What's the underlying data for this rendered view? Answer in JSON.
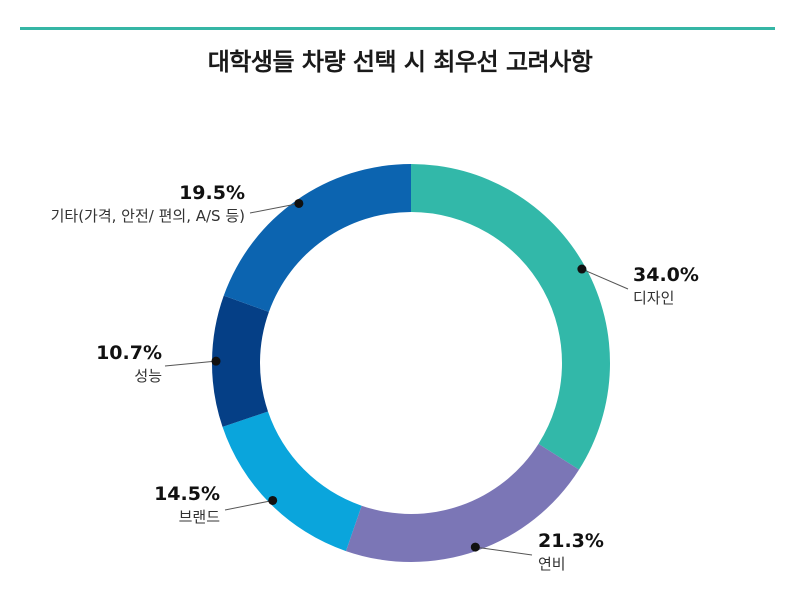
{
  "title": "대학생들 차량 선택 시 최우선 고려사항",
  "colors": {
    "rule": "#35b6a5"
  },
  "chart_data": {
    "type": "pie",
    "donut": true,
    "title": "대학생들 차량 선택 시 최우선 고려사항",
    "start": "12 o'clock, clockwise",
    "slices": [
      {
        "label": "디자인",
        "value": 34.0,
        "display": "34.0%",
        "color": "#32b8a9"
      },
      {
        "label": "연비",
        "value": 21.3,
        "display": "21.3%",
        "color": "#7b76b6"
      },
      {
        "label": "브랜드",
        "value": 14.5,
        "display": "14.5%",
        "color": "#0aa5dc"
      },
      {
        "label": "성능",
        "value": 10.7,
        "display": "10.7%",
        "color": "#053f86"
      },
      {
        "label": "기타(가격, 안전/ 편의, A/S 등)",
        "value": 19.5,
        "display": "19.5%",
        "color": "#0c64b0"
      }
    ]
  }
}
